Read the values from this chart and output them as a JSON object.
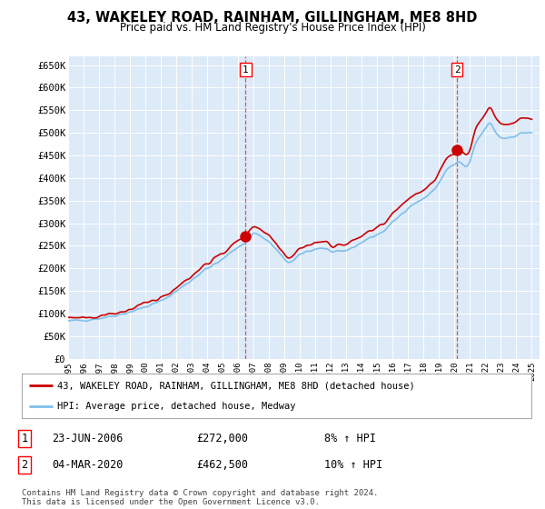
{
  "title_line1": "43, WAKELEY ROAD, RAINHAM, GILLINGHAM, ME8 8HD",
  "title_line2": "Price paid vs. HM Land Registry's House Price Index (HPI)",
  "ylabel_ticks": [
    "£0",
    "£50K",
    "£100K",
    "£150K",
    "£200K",
    "£250K",
    "£300K",
    "£350K",
    "£400K",
    "£450K",
    "£500K",
    "£550K",
    "£600K",
    "£650K"
  ],
  "ytick_values": [
    0,
    50000,
    100000,
    150000,
    200000,
    250000,
    300000,
    350000,
    400000,
    450000,
    500000,
    550000,
    600000,
    650000
  ],
  "xlim_start": 1995.0,
  "xlim_end": 2025.5,
  "ylim_min": 0,
  "ylim_max": 670000,
  "background_color": "#ddeaf8",
  "fig_bg_color": "#ffffff",
  "transaction1_price": 272000,
  "transaction1_x": 2006.48,
  "transaction2_price": 462500,
  "transaction2_x": 2020.17,
  "hpi_color": "#7fbfea",
  "price_color": "#cc0000",
  "legend_label1": "43, WAKELEY ROAD, RAINHAM, GILLINGHAM, ME8 8HD (detached house)",
  "legend_label2": "HPI: Average price, detached house, Medway",
  "note1_label": "1",
  "note1_date": "23-JUN-2006",
  "note1_price": "£272,000",
  "note1_hpi": "8% ↑ HPI",
  "note2_label": "2",
  "note2_date": "04-MAR-2020",
  "note2_price": "£462,500",
  "note2_hpi": "10% ↑ HPI",
  "footer": "Contains HM Land Registry data © Crown copyright and database right 2024.\nThis data is licensed under the Open Government Licence v3.0.",
  "xtick_years": [
    1995,
    1996,
    1997,
    1998,
    1999,
    2000,
    2001,
    2002,
    2003,
    2004,
    2005,
    2006,
    2007,
    2008,
    2009,
    2010,
    2011,
    2012,
    2013,
    2014,
    2015,
    2016,
    2017,
    2018,
    2019,
    2020,
    2021,
    2022,
    2023,
    2024,
    2025
  ]
}
